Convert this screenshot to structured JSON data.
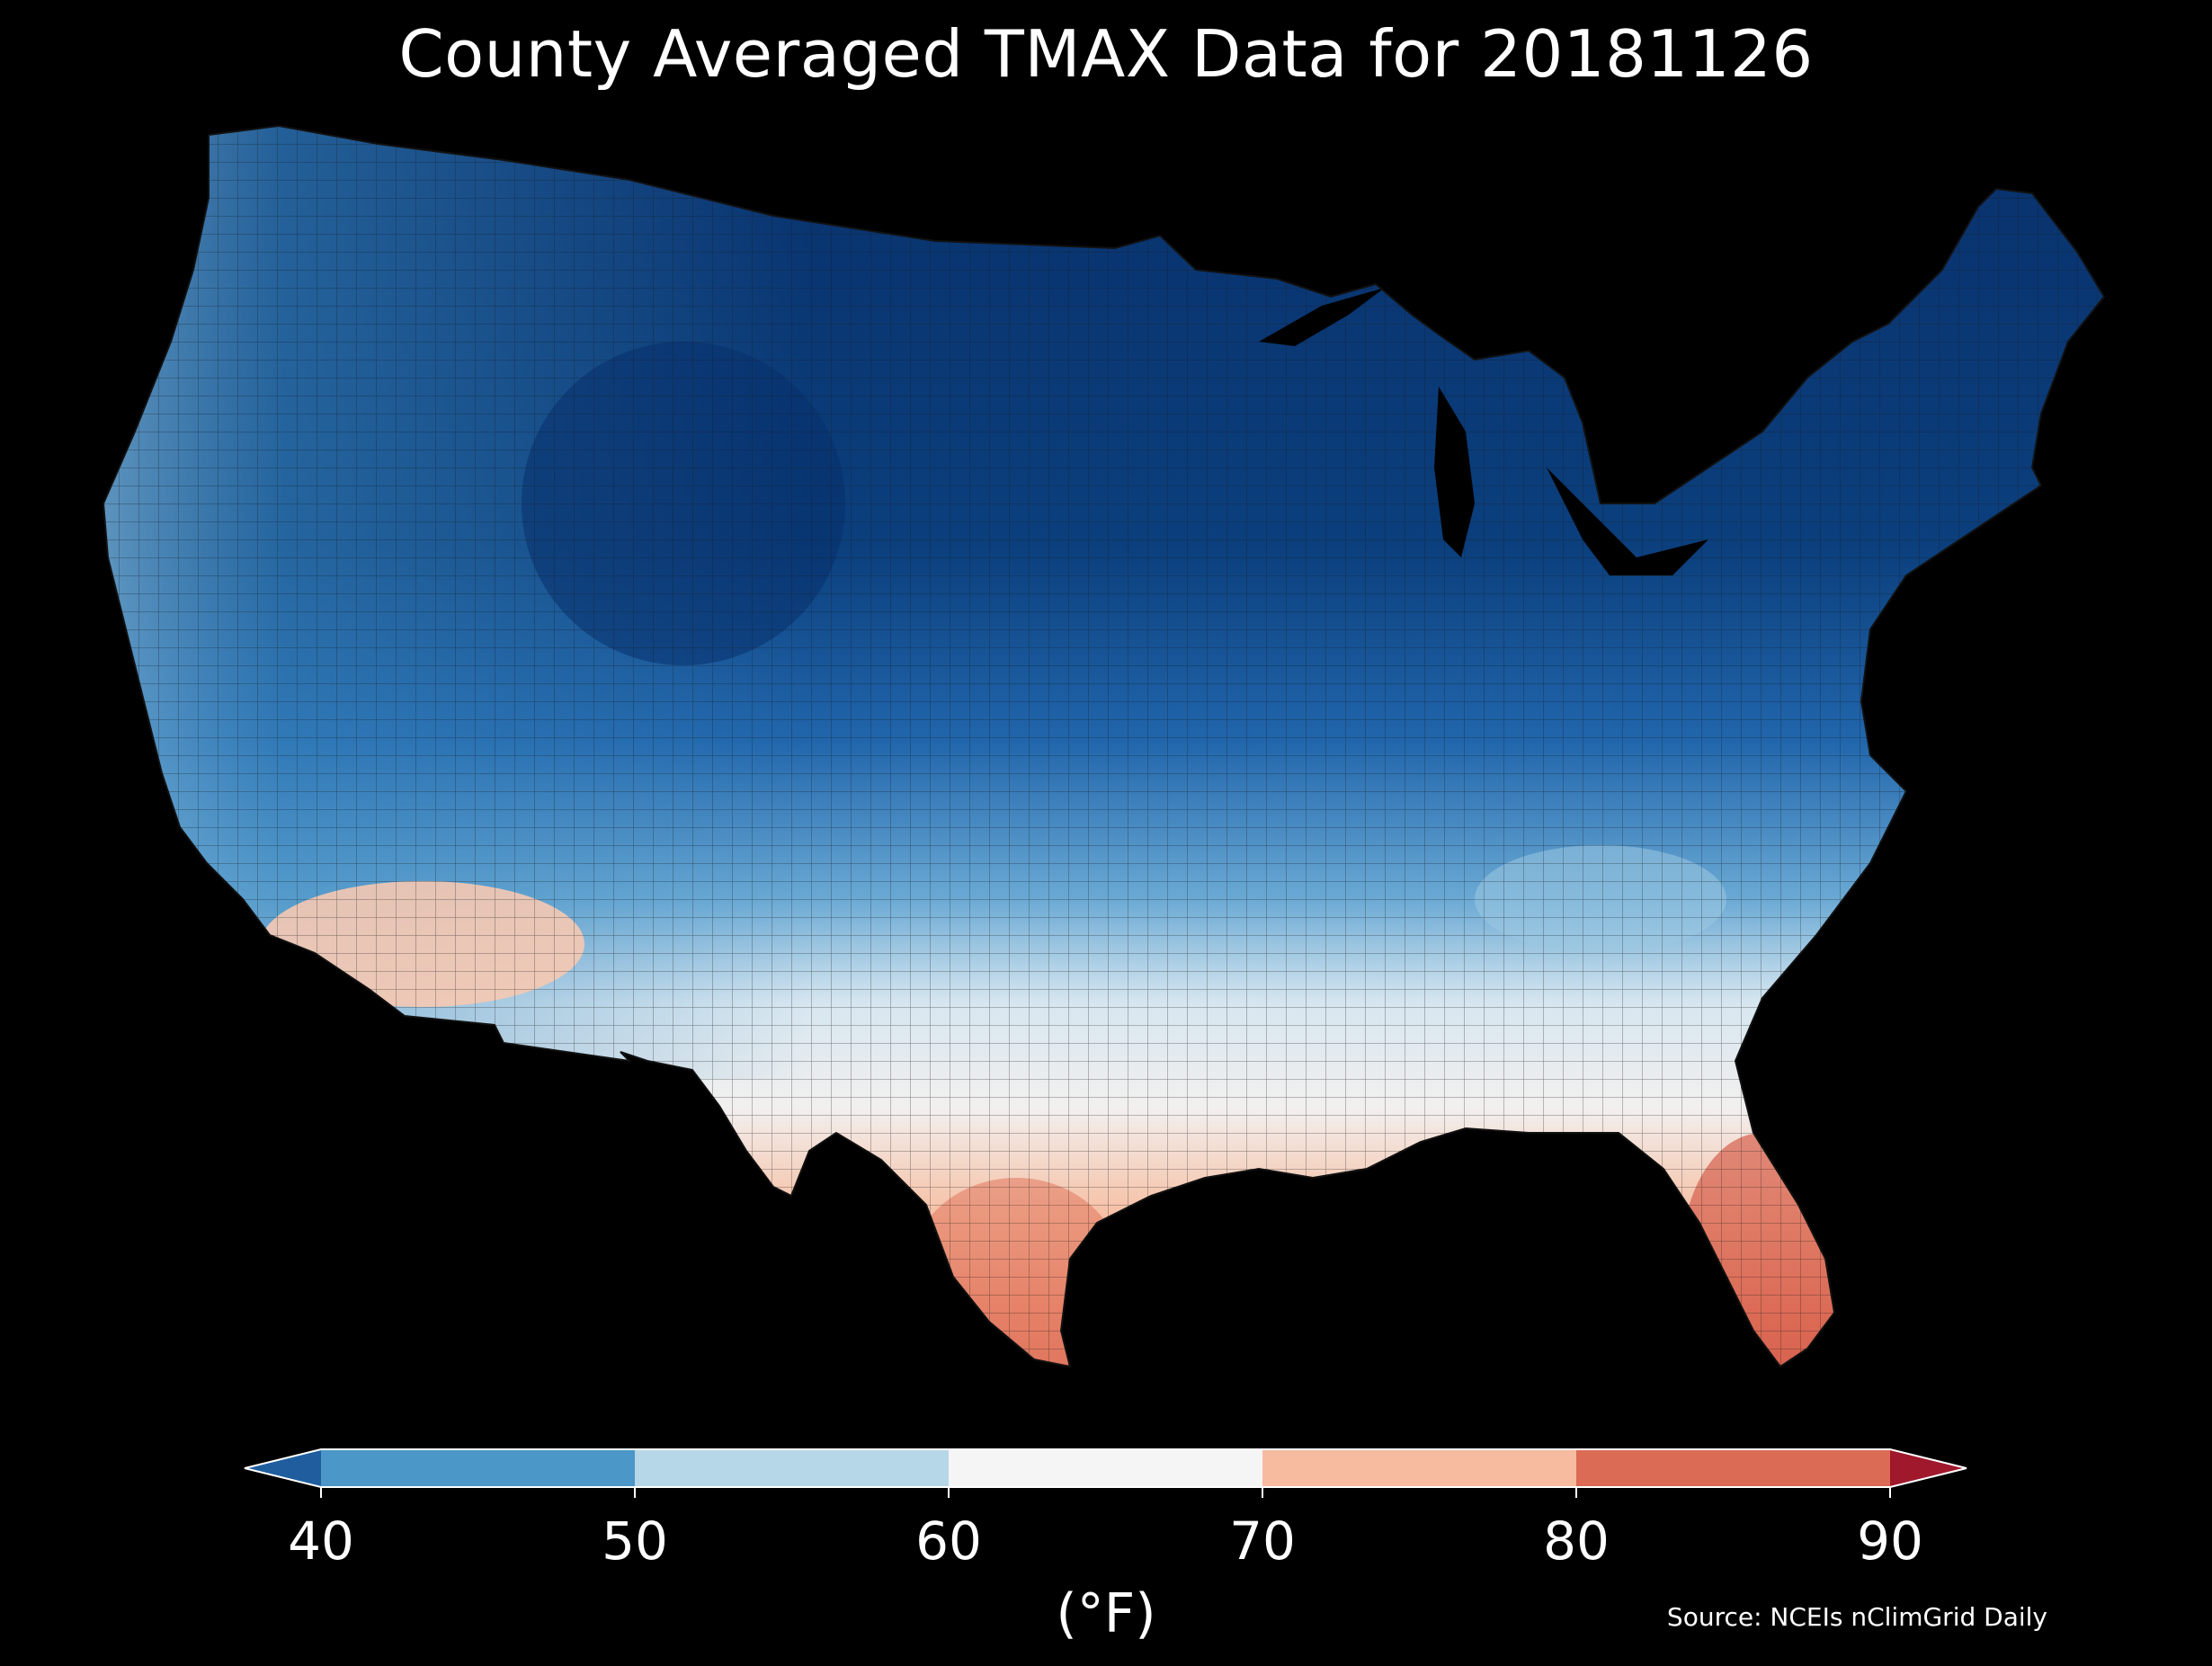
{
  "title": "County Averaged TMAX Data for 20181126",
  "colorbar": {
    "ticks": [
      "40",
      "50",
      "60",
      "70",
      "80",
      "90"
    ],
    "unit": "(°F)",
    "bins": [
      {
        "from": 40,
        "to": 50,
        "color": "#4b97c7"
      },
      {
        "from": 50,
        "to": 60,
        "color": "#b6d7e8"
      },
      {
        "from": 60,
        "to": 70,
        "color": "#f5f5f5"
      },
      {
        "from": 70,
        "to": 80,
        "color": "#f7bba0"
      },
      {
        "from": 80,
        "to": 90,
        "color": "#db6b55"
      }
    ],
    "under_color": "#1f5d9f",
    "over_color": "#a0182c"
  },
  "source": "Source: NCEIs nClimGrid Daily",
  "map": {
    "region": "Contiguous United States counties",
    "variable": "TMAX",
    "date": "20181126",
    "colors": {
      "coldest": "#08306b",
      "cold": "#2166ac",
      "cool": "#4393c3",
      "mild_cool": "#92c5de",
      "near_60": "#e8f0f5",
      "warm": "#f4a582",
      "hot": "#d6604d",
      "background": "#000000",
      "border": "#222222"
    }
  }
}
